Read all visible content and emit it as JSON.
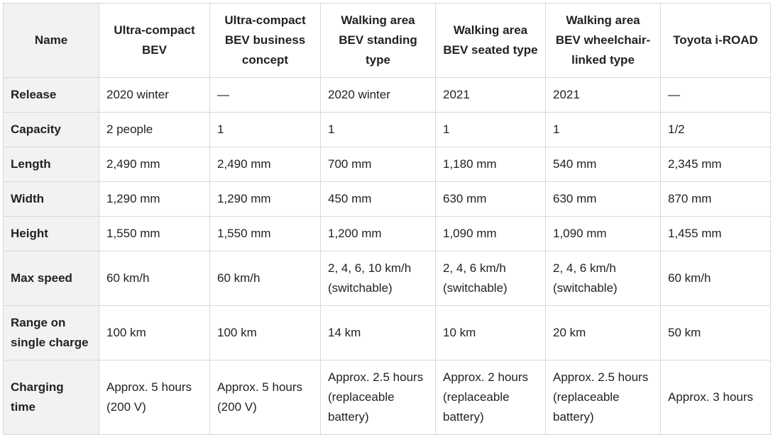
{
  "headers": [
    "Name",
    "Ultra-compact\nBEV",
    "Ultra-compact\nBEV business\nconcept",
    "Walking area\nBEV standing\ntype",
    "Walking area\nBEV seated type",
    "Walking area\nBEV wheelchair-\nlinked type",
    "Toyota i-ROAD"
  ],
  "rows": [
    {
      "label": "Release",
      "cells": [
        "2020 winter",
        "—",
        "2020 winter",
        "2021",
        "2021",
        "—"
      ]
    },
    {
      "label": "Capacity",
      "cells": [
        "2 people",
        "1",
        "1",
        "1",
        "1",
        "1/2"
      ]
    },
    {
      "label": "Length",
      "cells": [
        "2,490 mm",
        "2,490 mm",
        "700 mm",
        "1,180 mm",
        "540 mm",
        "2,345 mm"
      ]
    },
    {
      "label": "Width",
      "cells": [
        "1,290 mm",
        "1,290 mm",
        "450 mm",
        "630 mm",
        "630 mm",
        "870 mm"
      ]
    },
    {
      "label": "Height",
      "cells": [
        "1,550 mm",
        "1,550 mm",
        "1,200 mm",
        "1,090 mm",
        "1,090 mm",
        "1,455 mm"
      ]
    },
    {
      "label": "Max speed",
      "cells": [
        "60 km/h",
        "60 km/h",
        "2, 4, 6, 10 km/h\n(switchable)",
        "2, 4, 6 km/h\n(switchable)",
        "2, 4, 6 km/h\n(switchable)",
        "60 km/h"
      ]
    },
    {
      "label": "Range on\nsingle charge",
      "cells": [
        "100 km",
        "100 km",
        "14 km",
        "10 km",
        "20 km",
        "50 km"
      ]
    },
    {
      "label": "Charging\ntime",
      "cells": [
        "Approx. 5 hours\n(200 V)",
        "Approx. 5 hours\n(200 V)",
        "Approx. 2.5 hours\n(replaceable\nbattery)",
        "Approx. 2 hours\n(replaceable\nbattery)",
        "Approx. 2.5 hours\n(replaceable\nbattery)",
        "Approx. 3 hours"
      ]
    }
  ]
}
